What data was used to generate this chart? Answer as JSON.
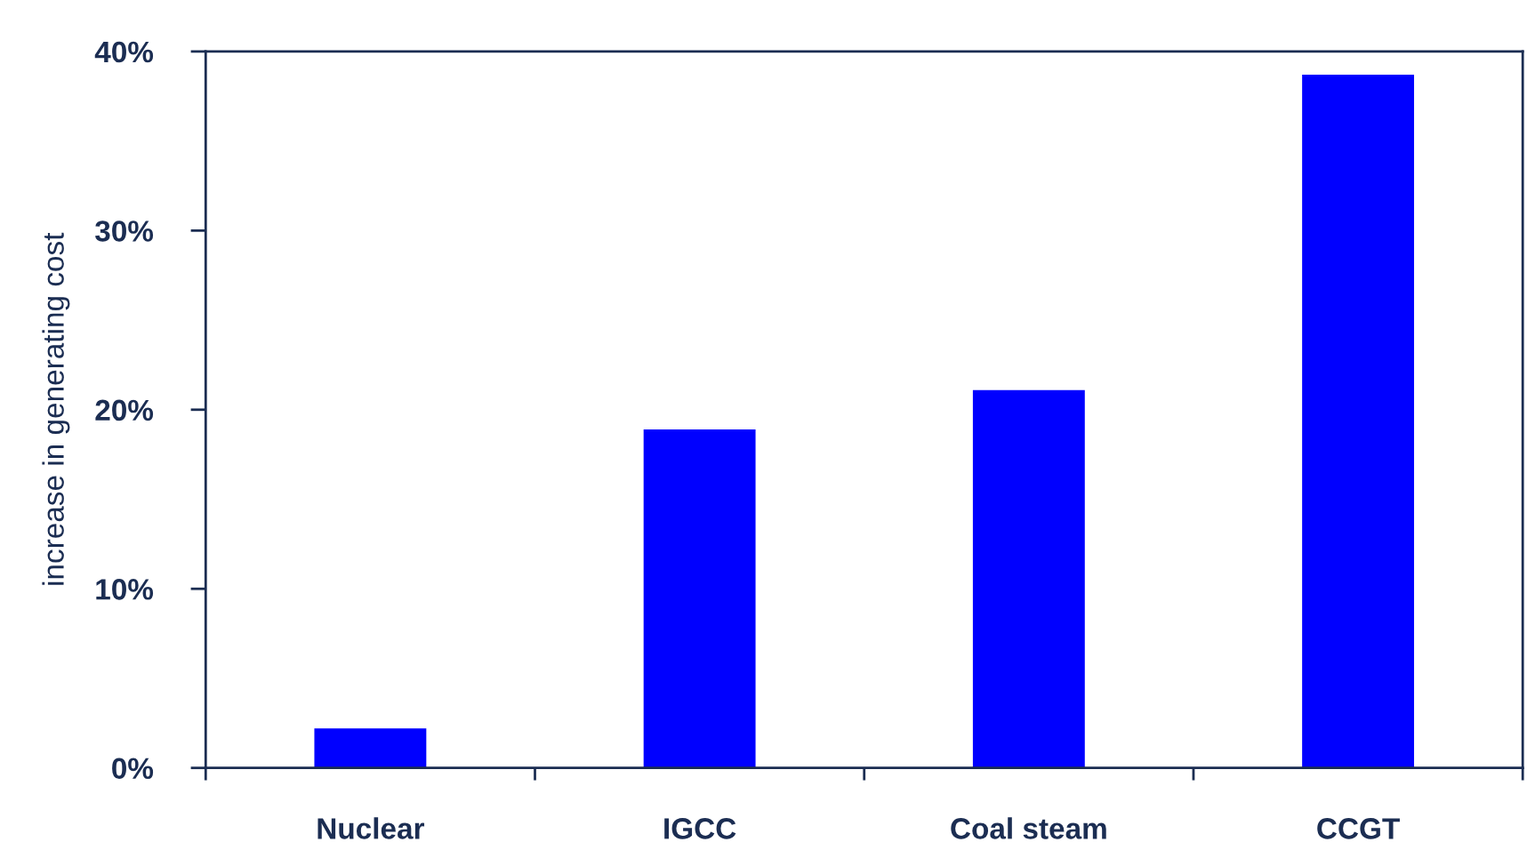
{
  "chart_data": {
    "type": "bar",
    "ylabel": "increase in generating cost",
    "categories": [
      "Nuclear",
      "IGCC",
      "Coal steam",
      "CCGT"
    ],
    "values": [
      2.2,
      18.9,
      21.1,
      38.7
    ],
    "color": "#0000ff",
    "ylim": [
      0,
      40
    ],
    "yticks": [
      {
        "value": 0,
        "label": "0%"
      },
      {
        "value": 10,
        "label": "10%"
      },
      {
        "value": 20,
        "label": "20%"
      },
      {
        "value": 30,
        "label": "30%"
      },
      {
        "value": 40,
        "label": "40%"
      }
    ],
    "grid": false,
    "legend": false
  }
}
